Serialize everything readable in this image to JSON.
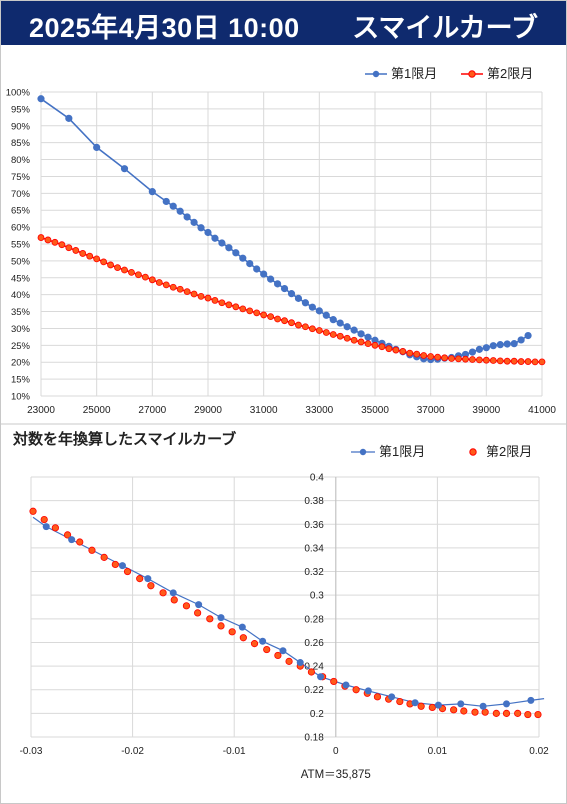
{
  "header": {
    "date": "2025年4月30日 10:00",
    "title": "スマイルカーブ"
  },
  "colors": {
    "series1": "#4472c4",
    "series2": "#ff0000",
    "series2_fill": "#ff5a1a",
    "header_bg": "#0f2a6e"
  },
  "chart_data": [
    {
      "type": "line",
      "title": "",
      "xlabel": "",
      "ylabel": "",
      "xlim": [
        23000,
        41000
      ],
      "ylim": [
        10,
        100
      ],
      "y_unit": "%",
      "legend_position": "top-right",
      "grid": true,
      "x_ticks": [
        "23000",
        "25000",
        "27000",
        "29000",
        "31000",
        "33000",
        "35000",
        "37000",
        "39000",
        "41000"
      ],
      "y_ticks": [
        "10%",
        "15%",
        "20%",
        "25%",
        "30%",
        "35%",
        "40%",
        "45%",
        "50%",
        "55%",
        "60%",
        "65%",
        "70%",
        "75%",
        "80%",
        "85%",
        "90%",
        "95%",
        "100%"
      ],
      "series": [
        {
          "name": "第1限月",
          "x": [
            23000,
            24000,
            25000,
            26000,
            27000,
            27500,
            27750,
            28000,
            28250,
            28500,
            28750,
            29000,
            29250,
            29500,
            29750,
            30000,
            30250,
            30500,
            30750,
            31000,
            31250,
            31500,
            31750,
            32000,
            32250,
            32500,
            32750,
            33000,
            33250,
            33500,
            33750,
            34000,
            34250,
            34500,
            34750,
            35000,
            35250,
            35500,
            35750,
            36000,
            36250,
            36500,
            36750,
            37000,
            37250,
            37500,
            37750,
            38000,
            38250,
            38500,
            38750,
            39000,
            39250,
            39500,
            39750,
            40000,
            40250,
            40500
          ],
          "y": [
            98.0,
            92.2,
            83.6,
            77.3,
            70.5,
            67.6,
            66.2,
            64.7,
            63.0,
            61.4,
            59.8,
            58.4,
            56.7,
            55.3,
            53.9,
            52.4,
            50.8,
            49.2,
            47.6,
            46.1,
            44.6,
            43.2,
            41.8,
            40.3,
            38.9,
            37.6,
            36.3,
            35.2,
            33.9,
            32.6,
            31.6,
            30.5,
            29.5,
            28.4,
            27.4,
            26.5,
            25.6,
            24.7,
            23.8,
            23.1,
            22.2,
            21.6,
            21.0,
            20.8,
            20.9,
            21.2,
            21.4,
            21.9,
            22.3,
            23.0,
            23.8,
            24.3,
            24.9,
            25.2,
            25.4,
            25.5,
            26.6,
            27.9
          ]
        },
        {
          "name": "第2限月",
          "x": [
            23000,
            23250,
            23500,
            23750,
            24000,
            24250,
            24500,
            24750,
            25000,
            25250,
            25500,
            25750,
            26000,
            26250,
            26500,
            26750,
            27000,
            27250,
            27500,
            27750,
            28000,
            28250,
            28500,
            28750,
            29000,
            29250,
            29500,
            29750,
            30000,
            30250,
            30500,
            30750,
            31000,
            31250,
            31500,
            31750,
            32000,
            32250,
            32500,
            32750,
            33000,
            33250,
            33500,
            33750,
            34000,
            34250,
            34500,
            34750,
            35000,
            35250,
            35500,
            35750,
            36000,
            36250,
            36500,
            36750,
            37000,
            37250,
            37500,
            37750,
            38000,
            38250,
            38500,
            38750,
            39000,
            39250,
            39500,
            39750,
            40000,
            40250,
            40500,
            40750,
            41000
          ],
          "y": [
            56.9,
            56.2,
            55.5,
            54.8,
            53.9,
            53.1,
            52.2,
            51.4,
            50.6,
            49.7,
            48.8,
            48.0,
            47.3,
            46.6,
            45.9,
            45.2,
            44.4,
            43.6,
            42.9,
            42.2,
            41.6,
            40.9,
            40.2,
            39.5,
            39.0,
            38.3,
            37.6,
            37.0,
            36.4,
            35.8,
            35.2,
            34.6,
            34.0,
            33.5,
            32.8,
            32.3,
            31.7,
            31.0,
            30.5,
            29.9,
            29.4,
            28.8,
            28.2,
            27.7,
            27.1,
            26.5,
            26.0,
            25.5,
            25.0,
            24.6,
            24.0,
            23.6,
            23.2,
            22.7,
            22.4,
            22.0,
            21.7,
            21.5,
            21.3,
            21.1,
            21.0,
            20.9,
            20.8,
            20.7,
            20.6,
            20.5,
            20.4,
            20.3,
            20.3,
            20.2,
            20.2,
            20.1,
            20.1
          ]
        }
      ]
    },
    {
      "type": "scatter",
      "title": "対数を年換算したスマイルカーブ",
      "xlabel": "ATM＝35,875",
      "ylabel": "",
      "xlim": [
        -0.03,
        0.02
      ],
      "ylim": [
        0.18,
        0.4
      ],
      "legend_position": "top-right",
      "grid": true,
      "trendline": true,
      "x_ticks": [
        "-0.03",
        "-0.02",
        "-0.01",
        "0",
        "0.01",
        "0.02"
      ],
      "y_ticks": [
        "0.18",
        "0.2",
        "0.22",
        "0.24",
        "0.26",
        "0.28",
        "0.3",
        "0.32",
        "0.34",
        "0.36",
        "0.38",
        "0.4"
      ],
      "series": [
        {
          "name": "第1限月",
          "x": [
            -0.0285,
            -0.026,
            -0.021,
            -0.0185,
            -0.016,
            -0.0135,
            -0.0113,
            -0.0092,
            -0.0072,
            -0.0052,
            -0.0035,
            -0.0015,
            0.001,
            0.0032,
            0.0055,
            0.0078,
            0.0101,
            0.0123,
            0.0145,
            0.0168,
            0.0192
          ],
          "y": [
            0.358,
            0.347,
            0.325,
            0.314,
            0.302,
            0.292,
            0.281,
            0.273,
            0.261,
            0.253,
            0.243,
            0.231,
            0.224,
            0.219,
            0.214,
            0.209,
            0.207,
            0.208,
            0.206,
            0.208,
            0.211
          ]
        },
        {
          "name": "第2限月",
          "x": [
            -0.0298,
            -0.0287,
            -0.0276,
            -0.0264,
            -0.0252,
            -0.024,
            -0.0228,
            -0.0217,
            -0.0205,
            -0.0193,
            -0.0182,
            -0.017,
            -0.0159,
            -0.0147,
            -0.0136,
            -0.0124,
            -0.0113,
            -0.0102,
            -0.0091,
            -0.008,
            -0.0068,
            -0.0057,
            -0.0046,
            -0.0035,
            -0.0024,
            -0.0013,
            -0.0002,
            0.0009,
            0.002,
            0.0031,
            0.0041,
            0.0052,
            0.0063,
            0.0073,
            0.0084,
            0.0095,
            0.0105,
            0.0116,
            0.0126,
            0.0137,
            0.0147,
            0.0158,
            0.0168,
            0.0179,
            0.0189,
            0.0199
          ],
          "y": [
            0.371,
            0.364,
            0.357,
            0.351,
            0.345,
            0.338,
            0.332,
            0.326,
            0.32,
            0.314,
            0.308,
            0.302,
            0.296,
            0.291,
            0.285,
            0.28,
            0.274,
            0.269,
            0.264,
            0.259,
            0.254,
            0.249,
            0.244,
            0.24,
            0.235,
            0.231,
            0.227,
            0.223,
            0.22,
            0.217,
            0.214,
            0.212,
            0.21,
            0.208,
            0.206,
            0.205,
            0.204,
            0.203,
            0.202,
            0.201,
            0.201,
            0.2,
            0.2,
            0.2,
            0.199,
            0.199
          ]
        }
      ]
    }
  ]
}
